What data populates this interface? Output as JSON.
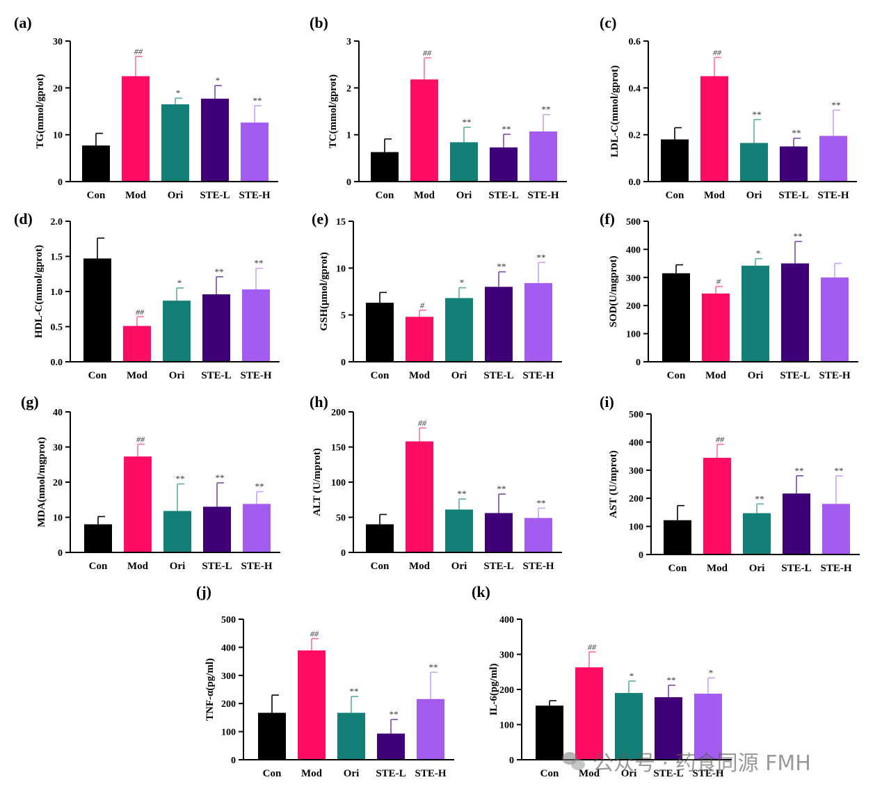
{
  "colors": {
    "Con": "#000000",
    "Mod": "#ff0d65",
    "Ori": "#128077",
    "STE-L": "#3f0078",
    "STE-H": "#a45cf0",
    "axis": "#000000",
    "error_Con": "#000000",
    "error_Mod": "#ff6fa0",
    "error_Ori": "#5aaea7",
    "error_STE-L": "#7a4aaa",
    "error_STE-H": "#c9a4f7"
  },
  "watermark": {
    "text": "公众号 · 药食同源 FMH",
    "icon": "wechat-icon"
  },
  "chart_data": [
    {
      "panel": "(a)",
      "type": "bar",
      "categories": [
        "Con",
        "Mod",
        "Ori",
        "STE-L",
        "STE-H"
      ],
      "values": [
        7.7,
        22.5,
        16.5,
        17.7,
        12.6
      ],
      "errors": [
        2.6,
        4.2,
        1.3,
        2.8,
        3.6
      ],
      "annotations": [
        "",
        "##",
        "*",
        "*",
        "**"
      ],
      "ylabel": "TG(mmol/gprot)",
      "ylim": [
        0,
        30
      ],
      "yticks": [
        0,
        10,
        20,
        30
      ],
      "ytick_labels": [
        "0",
        "10",
        "20",
        "30"
      ]
    },
    {
      "panel": "(b)",
      "type": "bar",
      "categories": [
        "Con",
        "Mod",
        "Ori",
        "STE-L",
        "STE-H"
      ],
      "values": [
        0.63,
        2.18,
        0.84,
        0.73,
        1.07
      ],
      "errors": [
        0.28,
        0.46,
        0.32,
        0.28,
        0.36
      ],
      "annotations": [
        "",
        "##",
        "**",
        "**",
        "**"
      ],
      "ylabel": "TC(mmol/gprot)",
      "ylim": [
        0,
        3
      ],
      "yticks": [
        0,
        1,
        2,
        3
      ],
      "ytick_labels": [
        "0",
        "1",
        "2",
        "3"
      ]
    },
    {
      "panel": "(c)",
      "type": "bar",
      "categories": [
        "Con",
        "Mod",
        "Ori",
        "STE-L",
        "STE-H"
      ],
      "values": [
        0.18,
        0.45,
        0.165,
        0.15,
        0.195
      ],
      "errors": [
        0.05,
        0.08,
        0.1,
        0.035,
        0.11
      ],
      "annotations": [
        "",
        "##",
        "**",
        "**",
        "**"
      ],
      "ylabel": "LDL-C(mmol/gprot)",
      "ylim": [
        0,
        0.6
      ],
      "yticks": [
        0,
        0.2,
        0.4,
        0.6
      ],
      "ytick_labels": [
        "0.0",
        "0.2",
        "0.4",
        "0.6"
      ]
    },
    {
      "panel": "(d)",
      "type": "bar",
      "categories": [
        "Con",
        "Mod",
        "Ori",
        "STE-L",
        "STE-H"
      ],
      "values": [
        1.47,
        0.51,
        0.87,
        0.96,
        1.03
      ],
      "errors": [
        0.29,
        0.13,
        0.18,
        0.25,
        0.3
      ],
      "annotations": [
        "",
        "##",
        "*",
        "**",
        "**"
      ],
      "ylabel": "HDL-C(mmol/gprot)",
      "ylim": [
        0,
        2
      ],
      "yticks": [
        0,
        0.5,
        1,
        1.5,
        2
      ],
      "ytick_labels": [
        "0.0",
        "0.5",
        "1.0",
        "1.5",
        "2.0"
      ]
    },
    {
      "panel": "(e)",
      "type": "bar",
      "categories": [
        "Con",
        "Mod",
        "Ori",
        "STE-L",
        "STE-H"
      ],
      "values": [
        6.3,
        4.8,
        6.8,
        8.0,
        8.4
      ],
      "errors": [
        1.1,
        0.7,
        1.1,
        1.6,
        2.2
      ],
      "annotations": [
        "",
        "#",
        "*",
        "**",
        "**"
      ],
      "ylabel": "GSH(μmol/gprot)",
      "ylim": [
        0,
        15
      ],
      "yticks": [
        0,
        5,
        10,
        15
      ],
      "ytick_labels": [
        "0",
        "5",
        "10",
        "15"
      ]
    },
    {
      "panel": "(f)",
      "type": "bar",
      "categories": [
        "Con",
        "Mod",
        "Ori",
        "STE-L",
        "STE-H"
      ],
      "values": [
        315,
        243,
        342,
        350,
        300
      ],
      "errors": [
        30,
        25,
        25,
        78,
        50
      ],
      "annotations": [
        "",
        "#",
        "*",
        "**",
        ""
      ],
      "ylabel": "SOD(U/mgprot)",
      "ylim": [
        0,
        500
      ],
      "yticks": [
        0,
        100,
        200,
        300,
        400,
        500
      ],
      "ytick_labels": [
        "0",
        "100",
        "200",
        "300",
        "400",
        "500"
      ]
    },
    {
      "panel": "(g)",
      "type": "bar",
      "categories": [
        "Con",
        "Mod",
        "Ori",
        "STE-L",
        "STE-H"
      ],
      "values": [
        8.0,
        27.3,
        11.8,
        13.0,
        13.8
      ],
      "errors": [
        2.2,
        3.5,
        7.7,
        6.8,
        3.5
      ],
      "annotations": [
        "",
        "##",
        "**",
        "**",
        "**"
      ],
      "ylabel": "MDA(nmol/mgprot)",
      "ylim": [
        0,
        40
      ],
      "yticks": [
        0,
        10,
        20,
        30,
        40
      ],
      "ytick_labels": [
        "0",
        "10",
        "20",
        "30",
        "40"
      ]
    },
    {
      "panel": "(h)",
      "type": "bar",
      "categories": [
        "Con",
        "Mod",
        "Ori",
        "STE-L",
        "STE-H"
      ],
      "values": [
        40,
        158,
        61,
        56,
        49
      ],
      "errors": [
        14,
        19,
        15,
        27,
        14
      ],
      "annotations": [
        "",
        "##",
        "**",
        "**",
        "**"
      ],
      "ylabel": "ALT (U/mprot)",
      "ylim": [
        0,
        200
      ],
      "yticks": [
        0,
        50,
        100,
        150,
        200
      ],
      "ytick_labels": [
        "0",
        "50",
        "100",
        "150",
        "200"
      ]
    },
    {
      "panel": "(i)",
      "type": "bar",
      "categories": [
        "Con",
        "Mod",
        "Ori",
        "STE-L",
        "STE-H"
      ],
      "values": [
        122,
        344,
        147,
        217,
        180
      ],
      "errors": [
        52,
        48,
        33,
        63,
        100
      ],
      "annotations": [
        "",
        "##",
        "**",
        "**",
        "**"
      ],
      "ylabel": "AST (U/mprot)",
      "ylim": [
        0,
        500
      ],
      "yticks": [
        0,
        100,
        200,
        300,
        400,
        500
      ],
      "ytick_labels": [
        "0",
        "100",
        "200",
        "300",
        "400",
        "500"
      ]
    },
    {
      "panel": "(j)",
      "type": "bar",
      "categories": [
        "Con",
        "Mod",
        "Ori",
        "STE-L",
        "STE-H"
      ],
      "values": [
        167,
        389,
        167,
        93,
        216
      ],
      "errors": [
        63,
        42,
        58,
        50,
        95
      ],
      "annotations": [
        "",
        "##",
        "**",
        "**",
        "**"
      ],
      "ylabel": "TNF-α(pg/ml)",
      "ylim": [
        0,
        500
      ],
      "yticks": [
        0,
        100,
        200,
        300,
        400,
        500
      ],
      "ytick_labels": [
        "0",
        "100",
        "200",
        "300",
        "400",
        "500"
      ]
    },
    {
      "panel": "(k)",
      "type": "bar",
      "categories": [
        "Con",
        "Mod",
        "Ori",
        "STE-L",
        "STE-H"
      ],
      "values": [
        154,
        263,
        190,
        178,
        188
      ],
      "errors": [
        14,
        44,
        34,
        34,
        45
      ],
      "annotations": [
        "",
        "##",
        "*",
        "**",
        "*"
      ],
      "ylabel": "IL-6(pg/ml)",
      "ylim": [
        0,
        400
      ],
      "yticks": [
        0,
        100,
        200,
        300,
        400
      ],
      "ytick_labels": [
        "0",
        "100",
        "200",
        "300",
        "400"
      ]
    }
  ]
}
